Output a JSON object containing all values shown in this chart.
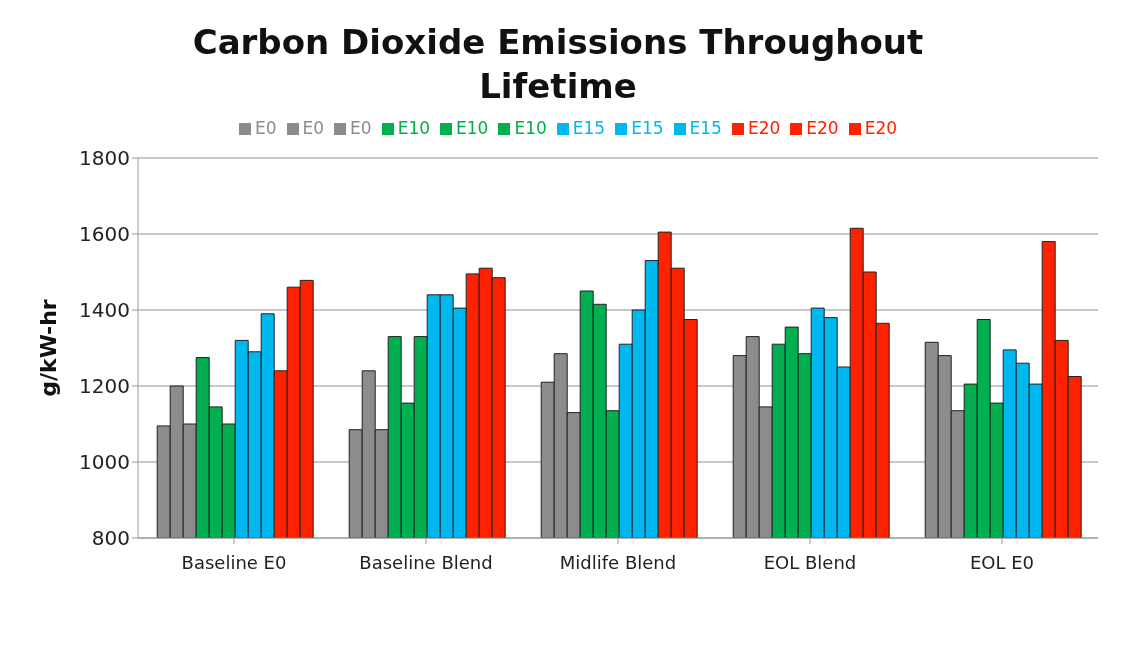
{
  "chart_data": {
    "type": "bar",
    "title": "Carbon Dioxide Emissions Throughout Lifetime",
    "ylabel": "g/kW-hr",
    "categories": [
      "Baseline E0",
      "Baseline Blend",
      "Midlife Blend",
      "EOL Blend",
      "EOL E0"
    ],
    "series": [
      {
        "name": "E0",
        "color": "#8c8c8c",
        "values": [
          1095,
          1085,
          1210,
          1280,
          1315
        ]
      },
      {
        "name": "E0",
        "color": "#8c8c8c",
        "values": [
          1200,
          1240,
          1285,
          1330,
          1280
        ]
      },
      {
        "name": "E0",
        "color": "#8c8c8c",
        "values": [
          1100,
          1085,
          1130,
          1145,
          1135
        ]
      },
      {
        "name": "E10",
        "color": "#00b050",
        "values": [
          1275,
          1330,
          1450,
          1310,
          1205
        ]
      },
      {
        "name": "E10",
        "color": "#00b050",
        "values": [
          1145,
          1155,
          1415,
          1355,
          1375
        ]
      },
      {
        "name": "E10",
        "color": "#00b050",
        "values": [
          1100,
          1330,
          1135,
          1285,
          1155
        ]
      },
      {
        "name": "E15",
        "color": "#00b8f0",
        "values": [
          1320,
          1440,
          1310,
          1405,
          1295
        ]
      },
      {
        "name": "E15",
        "color": "#00b8f0",
        "values": [
          1290,
          1440,
          1400,
          1380,
          1260
        ]
      },
      {
        "name": "E15",
        "color": "#00b8f0",
        "values": [
          1390,
          1405,
          1530,
          1250,
          1205
        ]
      },
      {
        "name": "E20",
        "color": "#ff2200",
        "values": [
          1240,
          1495,
          1605,
          1615,
          1580
        ]
      },
      {
        "name": "E20",
        "color": "#ff2200",
        "values": [
          1460,
          1510,
          1510,
          1500,
          1320
        ]
      },
      {
        "name": "E20",
        "color": "#ff2200",
        "values": [
          1478,
          1485,
          1375,
          1365,
          1225
        ]
      }
    ],
    "ylim": [
      800,
      1800
    ],
    "yticks": [
      800,
      1000,
      1200,
      1400,
      1600,
      1800
    ],
    "grid": "y",
    "legend": "top"
  }
}
